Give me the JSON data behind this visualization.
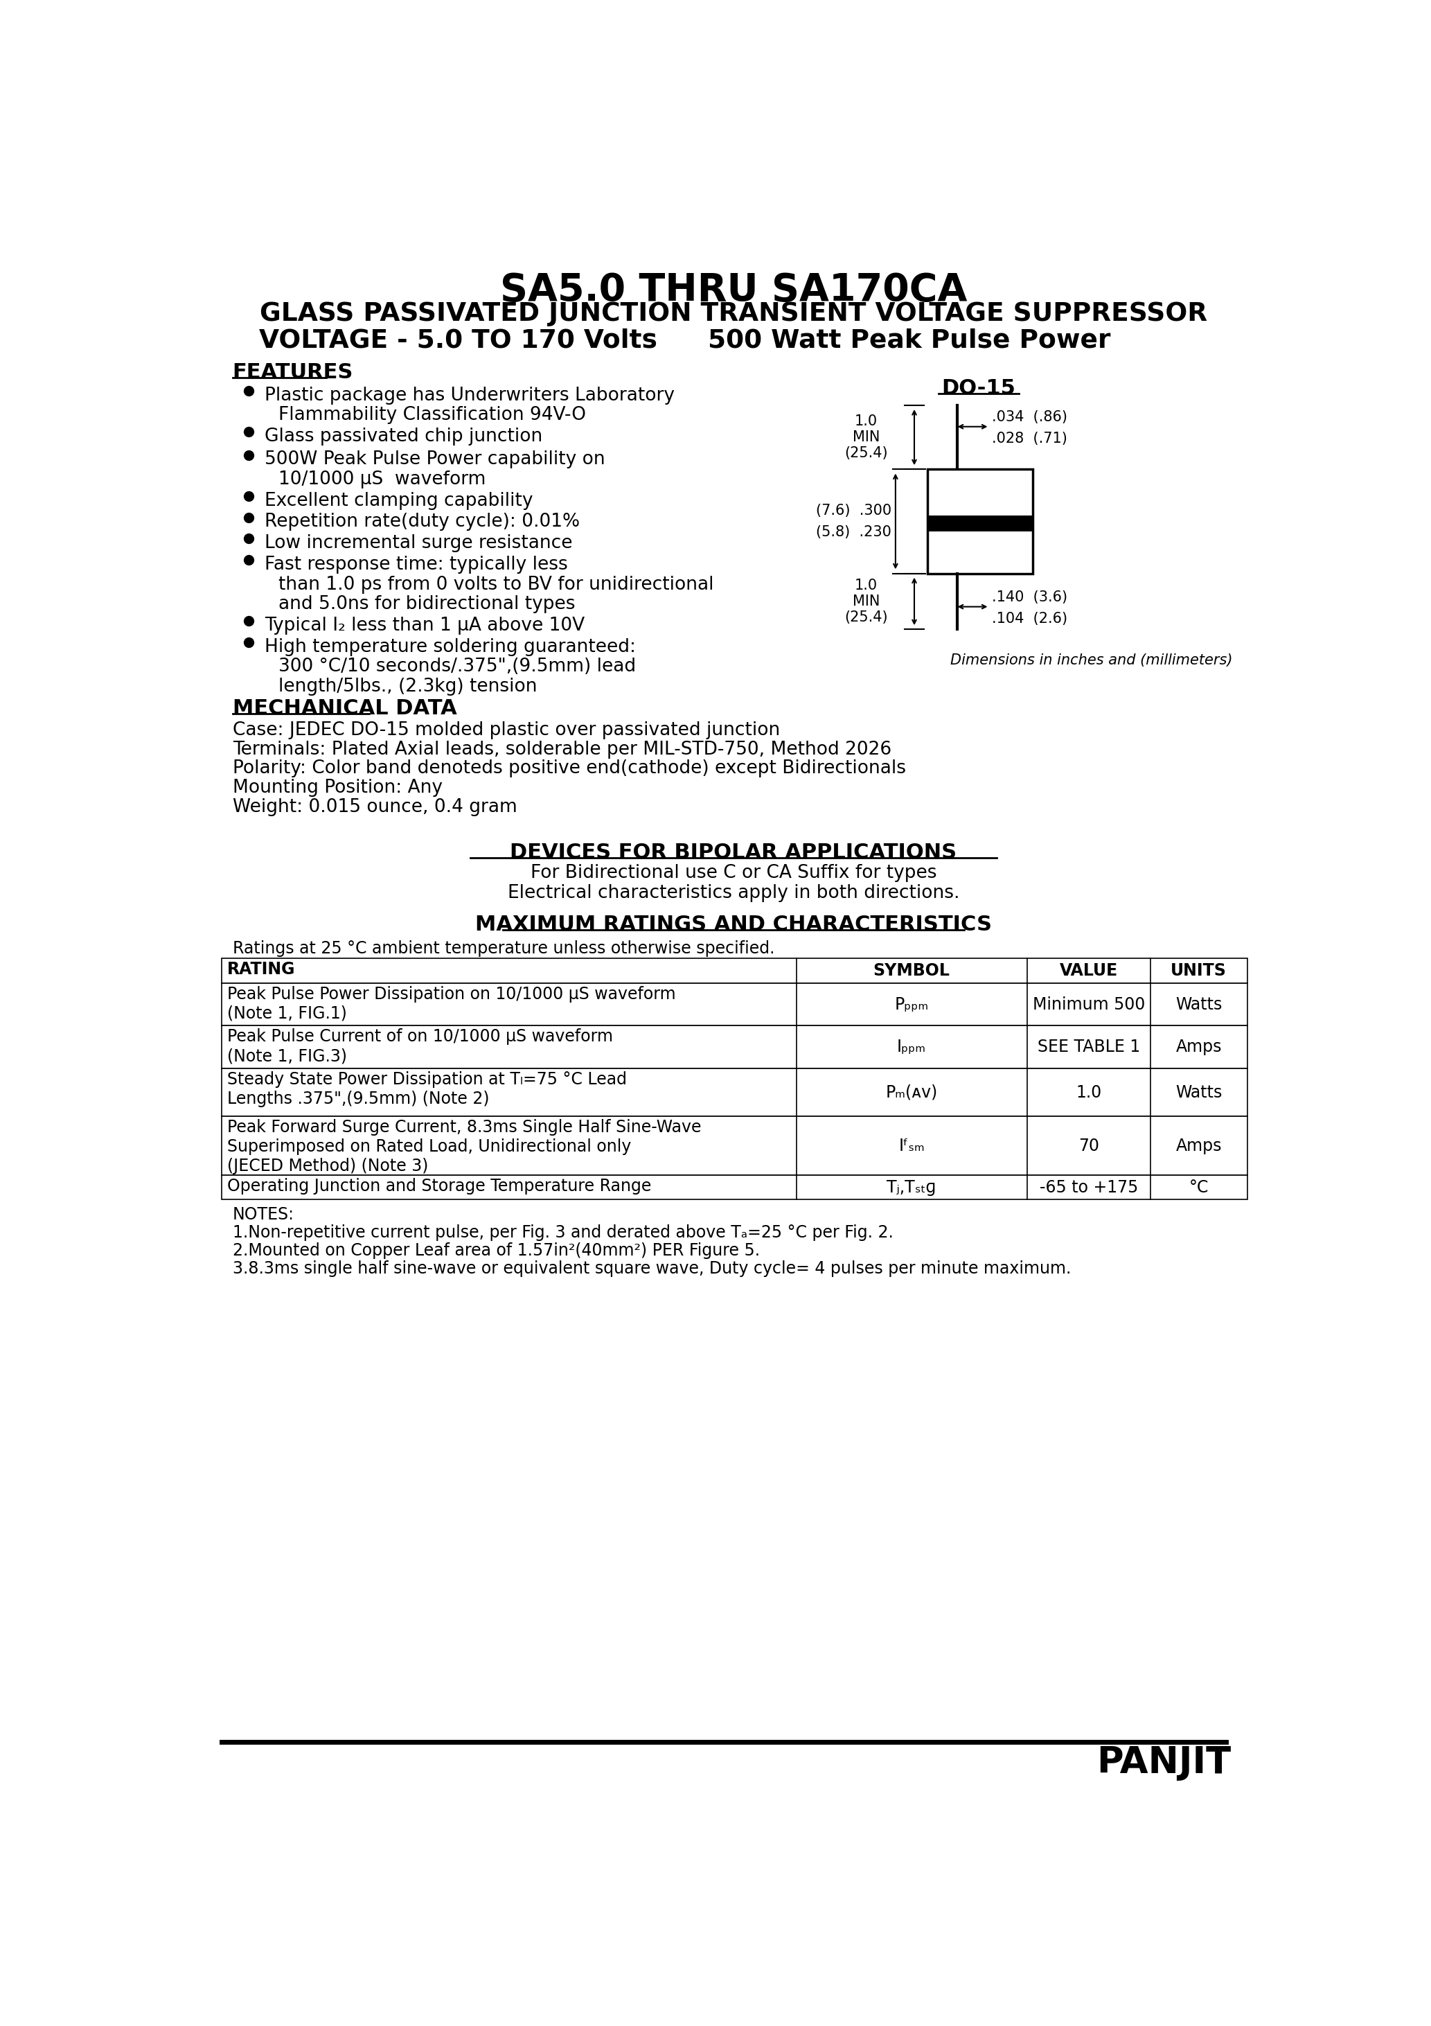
{
  "title1": "SA5.0 THRU SA170CA",
  "title2": "GLASS PASSIVATED JUNCTION TRANSIENT VOLTAGE SUPPRESSOR",
  "title3_left": "VOLTAGE - 5.0 TO 170 Volts",
  "title3_right": "500 Watt Peak Pulse Power",
  "bg_color": "#ffffff",
  "text_color": "#000000",
  "features_title": "FEATURES",
  "do15_label": "DO-15",
  "dim_note": "Dimensions in inches and (millimeters)",
  "mech_title": "MECHANICAL DATA",
  "mech_lines": [
    "Case: JEDEC DO-15 molded plastic over passivated junction",
    "Terminals: Plated Axial leads, solderable per MIL-STD-750, Method 2026",
    "Polarity: Color band denoteds positive end(cathode) except Bidirectionals",
    "Mounting Position: Any",
    "Weight: 0.015 ounce, 0.4 gram"
  ],
  "bipolar_title": "DEVICES FOR BIPOLAR APPLICATIONS",
  "bipolar_lines": [
    "For Bidirectional use C or CA Suffix for types",
    "Electrical characteristics apply in both directions."
  ],
  "max_ratings_title": "MAXIMUM RATINGS AND CHARACTERISTICS",
  "ratings_note": "Ratings at 25 °C ambient temperature unless otherwise specified.",
  "table_headers": [
    "RATING",
    "SYMBOL",
    "VALUE",
    "UNITS"
  ],
  "notes_lines": [
    "NOTES:",
    "1.Non-repetitive current pulse, per Fig. 3 and derated above Tₐ=25 °C per Fig. 2.",
    "2.Mounted on Copper Leaf area of 1.57in²(40mm²) PER Figure 5.",
    "3.8.3ms single half sine-wave or equivalent square wave, Duty cycle= 4 pulses per minute maximum."
  ],
  "brand": "PANJIT"
}
